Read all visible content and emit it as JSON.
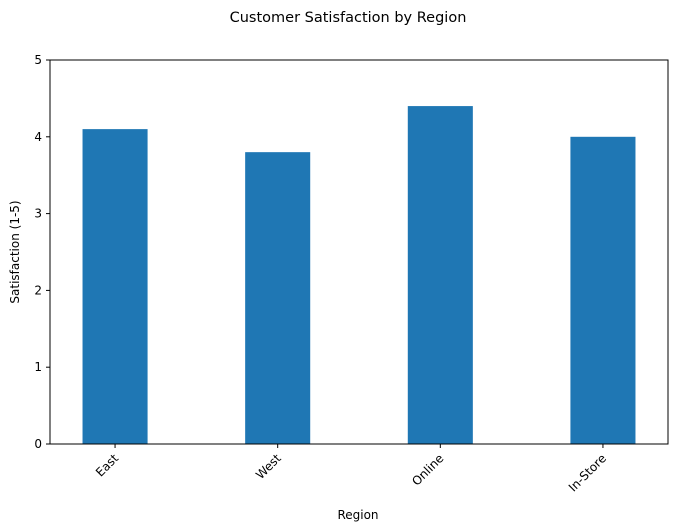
{
  "chart_data": {
    "type": "bar",
    "title": "Customer Satisfaction by Region",
    "xlabel": "Region",
    "ylabel": "Satisfaction (1-5)",
    "categories": [
      "East",
      "West",
      "Online",
      "In-Store"
    ],
    "values": [
      4.1,
      3.8,
      4.4,
      4.0
    ],
    "ylim": [
      0,
      5
    ],
    "yticks": [
      "0",
      "1",
      "2",
      "3",
      "4",
      "5"
    ],
    "grid": false,
    "legend": "none",
    "bar_color": "#1f77b4"
  }
}
